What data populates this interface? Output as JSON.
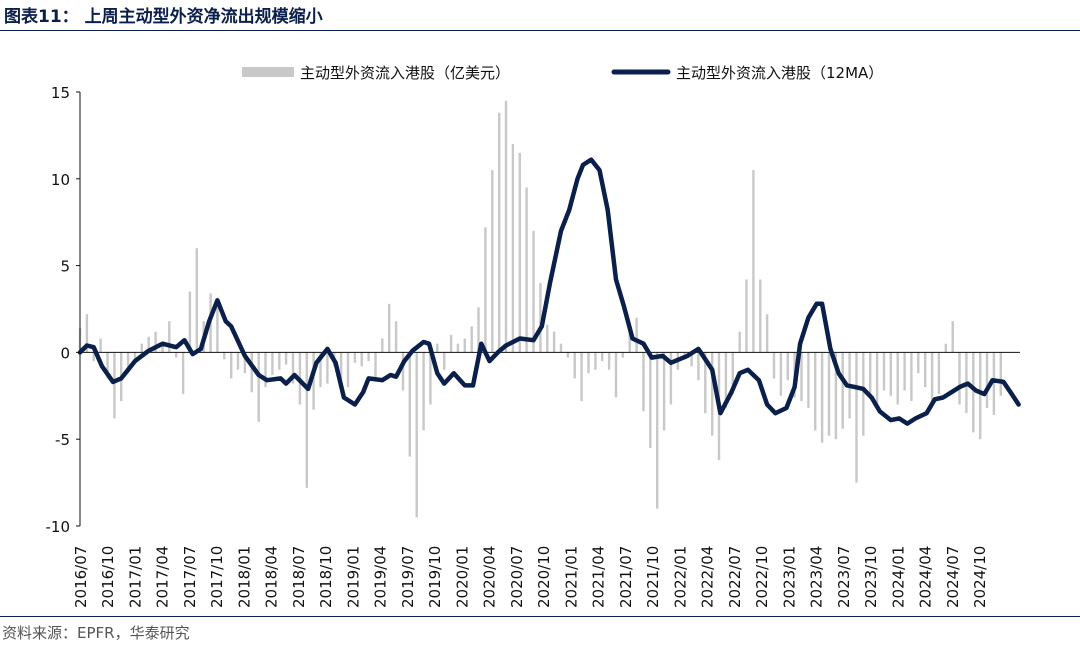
{
  "figure": {
    "title": "图表11： 上周主动型外资净流出规模缩小",
    "source": "资料来源：EPFR，华泰研究"
  },
  "colors": {
    "bar": "#c8c8c8",
    "line": "#0b1f4b",
    "rule": "#0b1f4b"
  },
  "chart_data": {
    "type": "bar",
    "title": "",
    "xlabel": "",
    "ylabel": "",
    "ylim": [
      -10,
      15
    ],
    "yticks": [
      "15",
      "10",
      "5",
      "0",
      "-5",
      "-10"
    ],
    "ytick_values": [
      15,
      10,
      5,
      0,
      -5,
      -10
    ],
    "x_range": [
      "2016/07",
      "2024/12"
    ],
    "xticks": [
      "2016/07",
      "2016/10",
      "2017/01",
      "2017/04",
      "2017/07",
      "2017/10",
      "2018/01",
      "2018/04",
      "2018/07",
      "2018/10",
      "2019/01",
      "2019/04",
      "2019/07",
      "2019/10",
      "2020/01",
      "2020/04",
      "2020/07",
      "2020/10",
      "2021/01",
      "2021/04",
      "2021/07",
      "2021/10",
      "2022/01",
      "2022/04",
      "2022/07",
      "2022/10",
      "2023/01",
      "2023/04",
      "2023/07",
      "2023/10",
      "2024/01",
      "2024/04",
      "2024/07",
      "2024/10"
    ],
    "legend": {
      "position": "top-center"
    },
    "series": [
      {
        "name": "主动型外资流入港股（亿美元）",
        "kind": "bar",
        "points": [
          [
            0,
            1.4
          ],
          [
            0.5,
            2.2
          ],
          [
            1,
            -0.5
          ],
          [
            1.5,
            0.8
          ],
          [
            2,
            -1.5
          ],
          [
            2.5,
            -3.8
          ],
          [
            3,
            -2.8
          ],
          [
            3.5,
            -1.2
          ],
          [
            4,
            -0.6
          ],
          [
            4.5,
            0.5
          ],
          [
            5,
            0.9
          ],
          [
            5.5,
            1.2
          ],
          [
            6,
            0.4
          ],
          [
            6.5,
            1.8
          ],
          [
            7,
            -0.3
          ],
          [
            7.5,
            -2.4
          ],
          [
            8,
            3.5
          ],
          [
            8.5,
            6.0
          ],
          [
            9,
            1.8
          ],
          [
            9.5,
            3.4
          ],
          [
            10,
            2.6
          ],
          [
            10.5,
            -0.4
          ],
          [
            11,
            -1.5
          ],
          [
            11.5,
            -1.0
          ],
          [
            12,
            -1.2
          ],
          [
            12.5,
            -2.3
          ],
          [
            13,
            -4.0
          ],
          [
            13.5,
            -2.0
          ],
          [
            14,
            -1.3
          ],
          [
            14.5,
            -1.0
          ],
          [
            15,
            -0.7
          ],
          [
            15.5,
            -1.8
          ],
          [
            16,
            -3.0
          ],
          [
            16.5,
            -7.8
          ],
          [
            17,
            -3.3
          ],
          [
            17.5,
            -2.0
          ],
          [
            18,
            -1.8
          ],
          [
            18.5,
            -0.8
          ],
          [
            19,
            -1.5
          ],
          [
            19.5,
            -2.0
          ],
          [
            20,
            -0.6
          ],
          [
            20.5,
            -0.8
          ],
          [
            21,
            -0.5
          ],
          [
            21.5,
            -1.6
          ],
          [
            22,
            0.8
          ],
          [
            22.5,
            2.8
          ],
          [
            23,
            1.8
          ],
          [
            23.5,
            -2.2
          ],
          [
            24,
            -6.0
          ],
          [
            24.5,
            -9.5
          ],
          [
            25,
            -4.5
          ],
          [
            25.5,
            -3.0
          ],
          [
            26,
            0.5
          ],
          [
            26.5,
            -1.0
          ],
          [
            27,
            1.0
          ],
          [
            27.5,
            0.5
          ],
          [
            28,
            0.8
          ],
          [
            28.5,
            1.5
          ],
          [
            29,
            2.6
          ],
          [
            29.5,
            7.2
          ],
          [
            30,
            10.5
          ],
          [
            30.5,
            13.8
          ],
          [
            31,
            14.5
          ],
          [
            31.5,
            12.0
          ],
          [
            32,
            11.5
          ],
          [
            32.5,
            9.5
          ],
          [
            33,
            7.0
          ],
          [
            33.5,
            4.0
          ],
          [
            34,
            1.6
          ],
          [
            34.5,
            1.2
          ],
          [
            35,
            0.5
          ],
          [
            35.5,
            -0.3
          ],
          [
            36,
            -1.5
          ],
          [
            36.5,
            -2.8
          ],
          [
            37,
            -1.2
          ],
          [
            37.5,
            -1.0
          ],
          [
            38,
            -0.5
          ],
          [
            38.5,
            -1.0
          ],
          [
            39,
            -2.6
          ],
          [
            39.5,
            -0.3
          ],
          [
            40,
            1.2
          ],
          [
            40.5,
            2.0
          ],
          [
            41,
            -3.4
          ],
          [
            41.5,
            -5.5
          ],
          [
            42,
            -9.0
          ],
          [
            42.5,
            -4.5
          ],
          [
            43,
            -3.0
          ],
          [
            43.5,
            -1.0
          ],
          [
            44,
            -0.4
          ],
          [
            44.5,
            -0.8
          ],
          [
            45,
            -1.6
          ],
          [
            45.5,
            -3.5
          ],
          [
            46,
            -4.8
          ],
          [
            46.5,
            -6.2
          ],
          [
            47,
            -3.2
          ],
          [
            47.5,
            -2.4
          ],
          [
            48,
            1.2
          ],
          [
            48.5,
            4.2
          ],
          [
            49,
            10.5
          ],
          [
            49.5,
            4.2
          ],
          [
            50,
            2.2
          ],
          [
            50.5,
            -1.5
          ],
          [
            51,
            -2.5
          ],
          [
            51.5,
            -1.6
          ],
          [
            52,
            -2.6
          ],
          [
            52.5,
            -2.8
          ],
          [
            53,
            -3.2
          ],
          [
            53.5,
            -4.5
          ],
          [
            54,
            -5.2
          ],
          [
            54.5,
            -4.8
          ],
          [
            55,
            -5.0
          ],
          [
            55.5,
            -4.4
          ],
          [
            56,
            -3.8
          ],
          [
            56.5,
            -7.5
          ],
          [
            57,
            -4.8
          ],
          [
            57.5,
            -2.5
          ],
          [
            58,
            -3.3
          ],
          [
            58.5,
            -2.2
          ],
          [
            59,
            -2.5
          ],
          [
            59.5,
            -3.0
          ],
          [
            60,
            -2.2
          ],
          [
            60.5,
            -2.8
          ],
          [
            61,
            -1.2
          ],
          [
            61.5,
            -2.0
          ],
          [
            62,
            -3.0
          ],
          [
            62.5,
            -2.4
          ],
          [
            63,
            0.5
          ],
          [
            63.5,
            1.8
          ],
          [
            64,
            -3.0
          ],
          [
            64.5,
            -3.5
          ],
          [
            65,
            -4.6
          ],
          [
            65.5,
            -5.0
          ],
          [
            66,
            -3.2
          ],
          [
            66.5,
            -3.6
          ],
          [
            67,
            -2.5
          ]
        ]
      },
      {
        "name": "主动型外资流入港股（12MA）",
        "kind": "line",
        "points": [
          [
            0,
            0
          ],
          [
            0.5,
            0.4
          ],
          [
            1,
            0.3
          ],
          [
            1.6,
            -0.8
          ],
          [
            2.4,
            -1.7
          ],
          [
            3,
            -1.5
          ],
          [
            4,
            -0.5
          ],
          [
            5,
            0.1
          ],
          [
            6,
            0.5
          ],
          [
            7,
            0.3
          ],
          [
            7.6,
            0.7
          ],
          [
            8.2,
            -0.1
          ],
          [
            8.8,
            0.2
          ],
          [
            9.4,
            1.8
          ],
          [
            10,
            3.0
          ],
          [
            10.6,
            1.8
          ],
          [
            11,
            1.5
          ],
          [
            12,
            -0.2
          ],
          [
            13,
            -1.3
          ],
          [
            13.6,
            -1.6
          ],
          [
            14.6,
            -1.5
          ],
          [
            15,
            -1.8
          ],
          [
            15.6,
            -1.3
          ],
          [
            16.6,
            -2.1
          ],
          [
            17.2,
            -0.6
          ],
          [
            18,
            0.2
          ],
          [
            18.6,
            -0.6
          ],
          [
            19.2,
            -2.6
          ],
          [
            20,
            -3.0
          ],
          [
            20.6,
            -2.3
          ],
          [
            21,
            -1.5
          ],
          [
            22,
            -1.6
          ],
          [
            22.6,
            -1.3
          ],
          [
            23,
            -1.4
          ],
          [
            23.6,
            -0.5
          ],
          [
            24.2,
            0.1
          ],
          [
            25,
            0.6
          ],
          [
            25.4,
            0.5
          ],
          [
            26,
            -1.2
          ],
          [
            26.5,
            -1.8
          ],
          [
            27.2,
            -1.2
          ],
          [
            28,
            -1.9
          ],
          [
            28.6,
            -1.9
          ],
          [
            29.2,
            0.5
          ],
          [
            29.8,
            -0.5
          ],
          [
            30.4,
            0.0
          ],
          [
            31,
            0.4
          ],
          [
            32,
            0.8
          ],
          [
            33,
            0.7
          ],
          [
            33.6,
            1.5
          ],
          [
            34.2,
            4.0
          ],
          [
            35,
            7.0
          ],
          [
            35.6,
            8.2
          ],
          [
            36.2,
            10.0
          ],
          [
            36.6,
            10.8
          ],
          [
            37.2,
            11.1
          ],
          [
            37.8,
            10.5
          ],
          [
            38.4,
            8.2
          ],
          [
            39,
            4.2
          ],
          [
            39.6,
            2.6
          ],
          [
            40.2,
            0.8
          ],
          [
            41,
            0.5
          ],
          [
            41.6,
            -0.3
          ],
          [
            42.4,
            -0.2
          ],
          [
            43,
            -0.6
          ],
          [
            43.6,
            -0.4
          ],
          [
            44.2,
            -0.2
          ],
          [
            45,
            0.2
          ],
          [
            46,
            -1.0
          ],
          [
            46.6,
            -3.5
          ],
          [
            47.4,
            -2.3
          ],
          [
            48,
            -1.2
          ],
          [
            48.6,
            -1.0
          ],
          [
            49.4,
            -1.6
          ],
          [
            50,
            -3.0
          ],
          [
            50.6,
            -3.5
          ],
          [
            51.4,
            -3.2
          ],
          [
            52,
            -2.0
          ],
          [
            52.4,
            0.5
          ],
          [
            53,
            2.0
          ],
          [
            53.6,
            2.8
          ],
          [
            54,
            2.8
          ],
          [
            54.6,
            0.2
          ],
          [
            55.2,
            -1.2
          ],
          [
            55.8,
            -1.9
          ],
          [
            56.4,
            -2.0
          ],
          [
            57,
            -2.1
          ],
          [
            57.6,
            -2.6
          ],
          [
            58.2,
            -3.4
          ],
          [
            59,
            -3.9
          ],
          [
            59.6,
            -3.8
          ],
          [
            60.2,
            -4.1
          ],
          [
            60.8,
            -3.8
          ],
          [
            61.6,
            -3.5
          ],
          [
            62.2,
            -2.7
          ],
          [
            62.8,
            -2.6
          ],
          [
            63.4,
            -2.3
          ],
          [
            64,
            -2.0
          ],
          [
            64.6,
            -1.8
          ],
          [
            65.2,
            -2.2
          ],
          [
            65.8,
            -2.4
          ],
          [
            66.4,
            -1.6
          ],
          [
            67.2,
            -1.7
          ],
          [
            67.8,
            -2.4
          ],
          [
            68.3,
            -3.0
          ]
        ]
      }
    ]
  }
}
